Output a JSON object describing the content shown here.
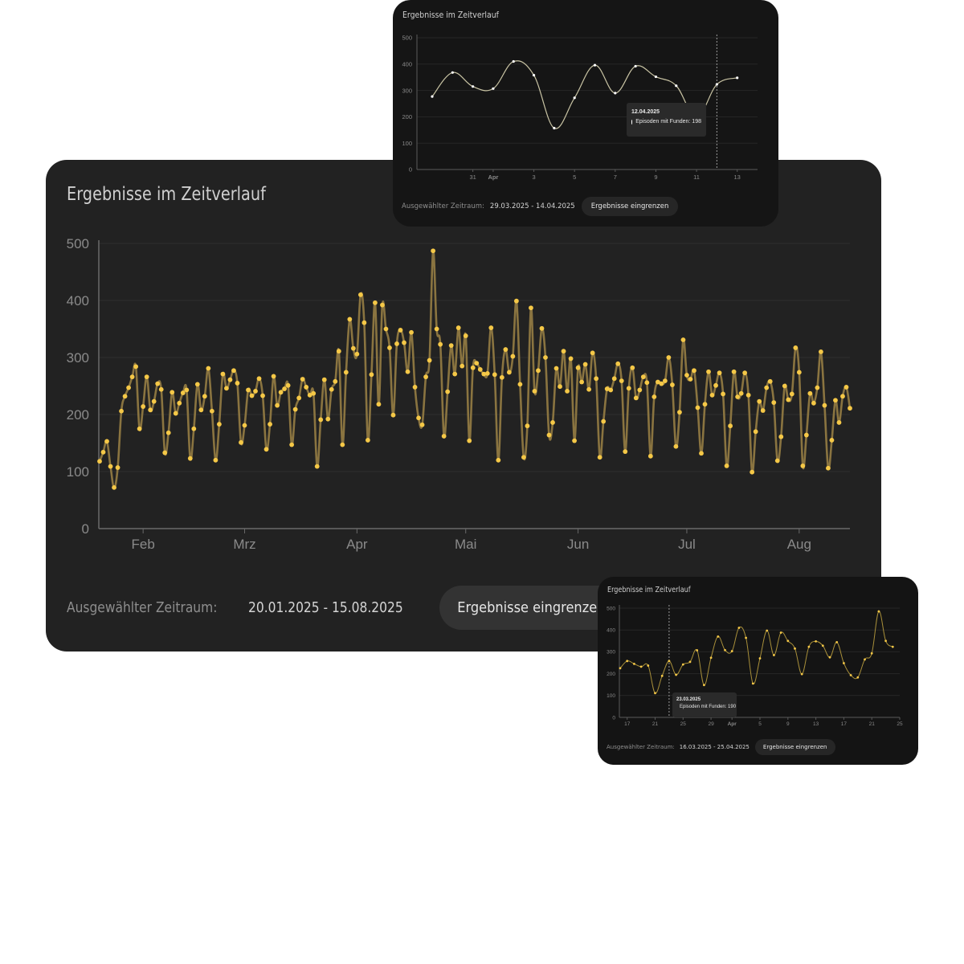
{
  "colors": {
    "accent": "#f5c847",
    "line_main": "#8a7440",
    "line_top": "#c9c4a4",
    "line_bottom": "#a88f3a",
    "card_bg": "#222222"
  },
  "cards": {
    "main": {
      "title": "Ergebnisse im Zeitverlauf",
      "range_label": "Ausgewählter Zeitraum:",
      "range_value": "20.01.2025 - 15.08.2025",
      "button_label": "Ergebnisse eingrenzen"
    },
    "top": {
      "title": "Ergebnisse im Zeitverlauf",
      "range_label": "Ausgewählter Zeitraum:",
      "range_value": "29.03.2025 - 14.04.2025",
      "button_label": "Ergebnisse eingrenzen",
      "tooltip": {
        "date": "12.04.2025",
        "text": "Episoden mit Funden: 198"
      }
    },
    "bottom": {
      "title": "Ergebnisse im Zeitverlauf",
      "range_label": "Ausgewählter Zeitraum:",
      "range_value": "16.03.2025 - 25.04.2025",
      "button_label": "Ergebnisse eingrenzen",
      "tooltip": {
        "date": "23.03.2025",
        "text": "Episoden mit Funden: 190"
      }
    }
  },
  "chart_data": [
    {
      "type": "line",
      "title": "Ergebnisse im Zeitverlauf",
      "x_start": "2025-01-20",
      "x_end": "2025-08-15",
      "ylim": [
        0,
        500
      ],
      "yticks": [
        0,
        100,
        200,
        300,
        400,
        500
      ],
      "xticks": [
        {
          "date": "2025-02-01",
          "label": "Feb"
        },
        {
          "date": "2025-03-01",
          "label": "Mrz"
        },
        {
          "date": "2025-04-01",
          "label": "Apr"
        },
        {
          "date": "2025-05-01",
          "label": "Mai"
        },
        {
          "date": "2025-06-01",
          "label": "Jun"
        },
        {
          "date": "2025-07-01",
          "label": "Jul"
        },
        {
          "date": "2025-08-01",
          "label": "Aug"
        }
      ],
      "grid": true,
      "series": [
        {
          "values": [
            118,
            134,
            153,
            109,
            72,
            107,
            206,
            232,
            247,
            266,
            284,
            175,
            214,
            266,
            208,
            223,
            254,
            244,
            133,
            168,
            239,
            202,
            220,
            238,
            243,
            123,
            175,
            253,
            208,
            232,
            281,
            206,
            120,
            183,
            271,
            246,
            261,
            277,
            255,
            151,
            181,
            243,
            233,
            241,
            263,
            233,
            139,
            183,
            267,
            216,
            239,
            245,
            251,
            147,
            209,
            229,
            262,
            248,
            234,
            237,
            109,
            191,
            261,
            192,
            244,
            258,
            311,
            147,
            274,
            367,
            316,
            306,
            410,
            361,
            155,
            270,
            396,
            218,
            392,
            350,
            317,
            199,
            324,
            348,
            326,
            275,
            344,
            248,
            194,
            182,
            266,
            295,
            487,
            350,
            323,
            162,
            240,
            321,
            271,
            352,
            285,
            338,
            154,
            282,
            290,
            279,
            271,
            272,
            352,
            270,
            120,
            265,
            314,
            274,
            302,
            399,
            253,
            125,
            180,
            387,
            241,
            277,
            351,
            300,
            164,
            186,
            281,
            249,
            311,
            241,
            298,
            154,
            282,
            257,
            288,
            244,
            308,
            263,
            125,
            188,
            245,
            243,
            263,
            289,
            259,
            135,
            246,
            282,
            229,
            243,
            266,
            256,
            127,
            231,
            257,
            254,
            259,
            300,
            252,
            144,
            204,
            331,
            269,
            262,
            277,
            212,
            132,
            218,
            275,
            234,
            251,
            273,
            236,
            110,
            180,
            275,
            231,
            237,
            273,
            234,
            99,
            170,
            223,
            207,
            247,
            258,
            221,
            119,
            161,
            250,
            226,
            236,
            317,
            274,
            110,
            164,
            237,
            220,
            247,
            310,
            216,
            106,
            155,
            225,
            186,
            232,
            248,
            211
          ]
        }
      ]
    },
    {
      "type": "line",
      "title": "Ergebnisse im Zeitverlauf",
      "x_start": "2025-03-29",
      "x_end": "2025-04-14",
      "ylim": [
        0,
        500
      ],
      "yticks": [
        0,
        100,
        200,
        300,
        400,
        500
      ],
      "xticks": [
        {
          "date": "2025-03-31",
          "label": "31"
        },
        {
          "date": "2025-04-01",
          "label": "Apr"
        },
        {
          "date": "2025-04-03",
          "label": "3"
        },
        {
          "date": "2025-04-05",
          "label": "5"
        },
        {
          "date": "2025-04-07",
          "label": "7"
        },
        {
          "date": "2025-04-09",
          "label": "9"
        },
        {
          "date": "2025-04-11",
          "label": "11"
        },
        {
          "date": "2025-04-13",
          "label": "13"
        }
      ],
      "grid": true,
      "highlight_date": "2025-04-12",
      "series": [
        {
          "values": [
            277,
            368,
            315,
            307,
            410,
            358,
            157,
            272,
            396,
            290,
            392,
            352,
            318,
            198,
            323,
            348
          ]
        }
      ]
    },
    {
      "type": "line",
      "title": "Ergebnisse im Zeitverlauf",
      "x_start": "2025-03-16",
      "x_end": "2025-04-25",
      "ylim": [
        0,
        500
      ],
      "yticks": [
        0,
        100,
        200,
        300,
        400,
        500
      ],
      "xticks": [
        {
          "date": "2025-03-17",
          "label": "17"
        },
        {
          "date": "2025-03-21",
          "label": "21"
        },
        {
          "date": "2025-03-25",
          "label": "25"
        },
        {
          "date": "2025-03-29",
          "label": "29"
        },
        {
          "date": "2025-04-01",
          "label": "Apr"
        },
        {
          "date": "2025-04-05",
          "label": "5"
        },
        {
          "date": "2025-04-09",
          "label": "9"
        },
        {
          "date": "2025-04-13",
          "label": "13"
        },
        {
          "date": "2025-04-17",
          "label": "17"
        },
        {
          "date": "2025-04-21",
          "label": "21"
        },
        {
          "date": "2025-04-25",
          "label": "25"
        }
      ],
      "grid": true,
      "highlight_date": "2025-03-23",
      "series": [
        {
          "values": [
            225,
            258,
            245,
            232,
            237,
            111,
            190,
            258,
            195,
            242,
            254,
            307,
            148,
            273,
            370,
            308,
            303,
            410,
            364,
            155,
            270,
            397,
            285,
            388,
            350,
            315,
            198,
            323,
            348,
            328,
            275,
            344,
            248,
            193,
            183,
            265,
            293,
            485,
            350,
            323
          ]
        }
      ]
    }
  ]
}
